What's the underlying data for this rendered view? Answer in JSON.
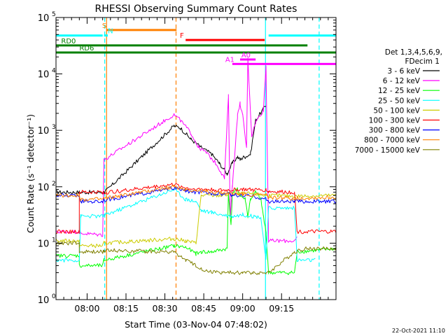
{
  "chart_data": {
    "type": "line",
    "title": "RHESSI Observing Summary Count Rates",
    "xlabel": "Start Time (03-Nov-04 07:48:02)",
    "ylabel": "Count Rate (s⁻¹ detector⁻¹)",
    "ylog": true,
    "xlim": [
      -12.0,
      96.0
    ],
    "ylim_exp": [
      0,
      5
    ],
    "x_ticks": [
      {
        "t": 0,
        "label": "08:00"
      },
      {
        "t": 15,
        "label": "08:15"
      },
      {
        "t": 30,
        "label": "08:30"
      },
      {
        "t": 45,
        "label": "08:45"
      },
      {
        "t": 60,
        "label": "09:00"
      },
      {
        "t": 75,
        "label": "09:15"
      }
    ],
    "x_minor_step": 3,
    "legend_header": [
      "Det 1,3,4,5,6,9,",
      "FDecim 1"
    ],
    "series": [
      {
        "name": "3 - 6 keV",
        "color": "#000000",
        "points": [
          [
            -12,
            80
          ],
          [
            -3,
            80
          ],
          [
            6.5,
            80
          ],
          [
            7,
            82
          ],
          [
            33.5,
            1200
          ],
          [
            36,
            1100
          ],
          [
            40,
            700
          ],
          [
            44,
            500
          ],
          [
            48,
            380
          ],
          [
            51,
            260
          ],
          [
            54,
            170
          ],
          [
            56,
            260
          ],
          [
            58,
            340
          ],
          [
            59,
            300
          ],
          [
            60,
            330
          ],
          [
            61,
            340
          ],
          [
            63,
            380
          ],
          [
            65,
            1500
          ],
          [
            69,
            2800
          ]
        ]
      },
      {
        "name": "6 - 12 keV",
        "color": "#ff00ff",
        "points": [
          [
            -12,
            16
          ],
          [
            -3,
            16
          ],
          [
            -2.5,
            15
          ],
          [
            6,
            14
          ],
          [
            6.5,
            300
          ],
          [
            33.5,
            1900
          ],
          [
            36,
            1500
          ],
          [
            40,
            900
          ],
          [
            43,
            500
          ],
          [
            46,
            400
          ],
          [
            50,
            250
          ],
          [
            53,
            140
          ],
          [
            54.5,
            4000
          ],
          [
            55.2,
            30
          ],
          [
            56,
            100
          ],
          [
            58,
            1800
          ],
          [
            59,
            3000
          ],
          [
            60,
            1800
          ],
          [
            61.5,
            500
          ],
          [
            62,
            18000
          ],
          [
            63.5,
            800
          ],
          [
            65,
            1400
          ],
          [
            68,
            2300
          ],
          [
            69,
            14000
          ],
          [
            70,
            11
          ],
          [
            80,
            11
          ],
          [
            81,
            12
          ]
        ]
      },
      {
        "name": "12 - 25 keV",
        "color": "#00ff00",
        "points": [
          [
            -12,
            6
          ],
          [
            -3,
            6
          ],
          [
            -3,
            4
          ],
          [
            6,
            4
          ],
          [
            6.5,
            5
          ],
          [
            33.5,
            9
          ],
          [
            38,
            8.5
          ],
          [
            42,
            6.5
          ],
          [
            44,
            7
          ],
          [
            48,
            7
          ],
          [
            54,
            8
          ],
          [
            54.5,
            80
          ],
          [
            55.5,
            20
          ],
          [
            56,
            75
          ],
          [
            58,
            90
          ],
          [
            59,
            70
          ],
          [
            61,
            60
          ],
          [
            62,
            30
          ],
          [
            63,
            60
          ],
          [
            65,
            80
          ],
          [
            67,
            60
          ],
          [
            68,
            30
          ],
          [
            69,
            15
          ],
          [
            70,
            3
          ],
          [
            80,
            3
          ],
          [
            81,
            7
          ],
          [
            96,
            8
          ]
        ]
      },
      {
        "name": "25 - 50 keV",
        "color": "#00ffff",
        "points": [
          [
            -12,
            5
          ],
          [
            -3,
            5
          ],
          [
            -2.5,
            30
          ],
          [
            6,
            30
          ],
          [
            6.5,
            31
          ],
          [
            33.5,
            90
          ],
          [
            38,
            60
          ],
          [
            42,
            55
          ],
          [
            44,
            38
          ],
          [
            48,
            35
          ],
          [
            52,
            32
          ],
          [
            56,
            30
          ],
          [
            60,
            32
          ],
          [
            64,
            30
          ],
          [
            67,
            29
          ],
          [
            69,
            5
          ],
          [
            70,
            42
          ],
          [
            80,
            42
          ],
          [
            81,
            5
          ],
          [
            88,
            5
          ]
        ]
      },
      {
        "name": "50 - 100 keV",
        "color": "#cccc00",
        "points": [
          [
            -12,
            11
          ],
          [
            -3,
            11
          ],
          [
            -3,
            9
          ],
          [
            6,
            9
          ],
          [
            6.5,
            10
          ],
          [
            33.5,
            12
          ],
          [
            38,
            11
          ],
          [
            42,
            10
          ],
          [
            44,
            70
          ],
          [
            52,
            70
          ],
          [
            56,
            72
          ],
          [
            60,
            75
          ],
          [
            64,
            75
          ],
          [
            69,
            70
          ],
          [
            70,
            70
          ],
          [
            80,
            68
          ],
          [
            96,
            70
          ]
        ]
      },
      {
        "name": "100 - 300 keV",
        "color": "#ff0000",
        "points": [
          [
            -12,
            16
          ],
          [
            -3,
            16
          ],
          [
            -3,
            80
          ],
          [
            6,
            80
          ],
          [
            6.5,
            78
          ],
          [
            33.5,
            110
          ],
          [
            38,
            95
          ],
          [
            42,
            90
          ],
          [
            46,
            90
          ],
          [
            52,
            86
          ],
          [
            56,
            88
          ],
          [
            60,
            90
          ],
          [
            64,
            88
          ],
          [
            69,
            88
          ],
          [
            70,
            82
          ],
          [
            80,
            80
          ],
          [
            81,
            16
          ],
          [
            96,
            16
          ]
        ]
      },
      {
        "name": "300 - 800 keV",
        "color": "#0000ff",
        "points": [
          [
            -12,
            70
          ],
          [
            -3,
            70
          ],
          [
            -2.5,
            55
          ],
          [
            6,
            55
          ],
          [
            6.5,
            58
          ],
          [
            33.5,
            95
          ],
          [
            38,
            85
          ],
          [
            42,
            80
          ],
          [
            46,
            78
          ],
          [
            52,
            75
          ],
          [
            56,
            72
          ],
          [
            60,
            70
          ],
          [
            64,
            68
          ],
          [
            69,
            60
          ],
          [
            70,
            55
          ],
          [
            80,
            55
          ],
          [
            96,
            55
          ]
        ]
      },
      {
        "name": "800 - 7000 keV",
        "color": "#ff8000",
        "points": [
          [
            -12,
            70
          ],
          [
            -3,
            70
          ],
          [
            -2.5,
            60
          ],
          [
            6,
            60
          ],
          [
            6.5,
            62
          ],
          [
            33.5,
            100
          ],
          [
            38,
            90
          ],
          [
            42,
            85
          ],
          [
            46,
            82
          ],
          [
            52,
            78
          ],
          [
            56,
            76
          ],
          [
            60,
            74
          ],
          [
            64,
            72
          ],
          [
            69,
            72
          ],
          [
            70,
            65
          ],
          [
            80,
            62
          ],
          [
            96,
            65
          ]
        ]
      },
      {
        "name": "7000 - 15000 keV",
        "color": "#808000",
        "points": [
          [
            -12,
            10
          ],
          [
            -3,
            10
          ],
          [
            -3,
            7
          ],
          [
            6,
            7
          ],
          [
            6.5,
            7.5
          ],
          [
            33.5,
            7
          ],
          [
            38,
            5
          ],
          [
            42,
            4
          ],
          [
            46,
            3.2
          ],
          [
            52,
            3
          ],
          [
            56,
            3
          ],
          [
            60,
            3
          ],
          [
            64,
            3
          ],
          [
            69,
            3
          ],
          [
            70,
            3
          ],
          [
            80,
            7
          ],
          [
            84,
            8
          ],
          [
            96,
            8
          ]
        ]
      }
    ],
    "flags": [
      {
        "label": "S",
        "color": "#ff8000",
        "x1": 7.5,
        "x2": 34.5,
        "y": 60000,
        "label_t": 5.8
      },
      {
        "label": "N",
        "color": "#00ffff",
        "x1": 6.5,
        "x2": 8.0,
        "y": 48000,
        "label_t": 8.0
      },
      {
        "label": "",
        "color": "#00ffff",
        "x1": -12,
        "x2": 6.0,
        "y": 48000,
        "label_t": -12
      },
      {
        "label": "",
        "color": "#00ffff",
        "x1": 70.0,
        "x2": 96,
        "y": 48000,
        "label_t": 70
      },
      {
        "label": "F",
        "color": "#ff0000",
        "x1": 38.0,
        "x2": 68.5,
        "y": 40000,
        "label_t": 35.8
      },
      {
        "label": "RD0",
        "color": "#008000",
        "x1": -12,
        "x2": 85.0,
        "y": 32000,
        "label_t": -10.0
      },
      {
        "label": "RD6",
        "color": "#008000",
        "x1": -12,
        "x2": 96,
        "y": 24000,
        "label_t": -3.0
      },
      {
        "label": "A0",
        "color": "#ff00ff",
        "x1": 59.0,
        "x2": 65.0,
        "y": 18000,
        "label_t": 59.5
      },
      {
        "label": "A1",
        "color": "#ff00ff",
        "x1": 56.0,
        "x2": 96,
        "y": 15000,
        "label_t": 53.3
      }
    ],
    "vlines": [
      {
        "t": 6.8,
        "color": "#00ffff",
        "dashed": true
      },
      {
        "t": 7.5,
        "color": "#ff8000",
        "dashed": false
      },
      {
        "t": 34.3,
        "color": "#ff8000",
        "dashed": true
      },
      {
        "t": 68.8,
        "color": "#00ffff",
        "dashed": false
      },
      {
        "t": 89.5,
        "color": "#00ffff",
        "dashed": true
      }
    ]
  },
  "footer_date": "22-Oct-2021 11:10"
}
